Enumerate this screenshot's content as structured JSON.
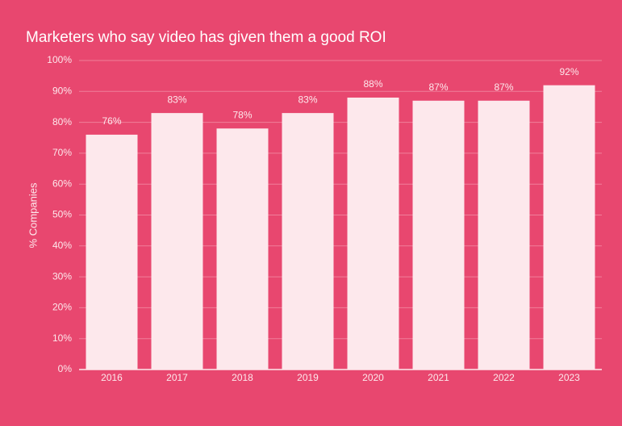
{
  "chart_data": {
    "type": "bar",
    "title": "Marketers who say video has given them a good ROI",
    "y_label": "% Companies",
    "categories": [
      "2016",
      "2017",
      "2018",
      "2019",
      "2020",
      "2021",
      "2022",
      "2023"
    ],
    "values": [
      76,
      83,
      78,
      83,
      88,
      87,
      87,
      92
    ],
    "value_labels": [
      "76%",
      "83%",
      "78%",
      "83%",
      "88%",
      "87%",
      "87%",
      "92%"
    ],
    "color": "#fde8ec",
    "ylim": [
      0,
      100
    ],
    "yticks": [
      {
        "value": 0,
        "label": "0%"
      },
      {
        "value": 10,
        "label": "10%"
      },
      {
        "value": 20,
        "label": "20%"
      },
      {
        "value": 30,
        "label": "30%"
      },
      {
        "value": 40,
        "label": "40%"
      },
      {
        "value": 50,
        "label": "50%"
      },
      {
        "value": 60,
        "label": "60%"
      },
      {
        "value": 70,
        "label": "70%"
      },
      {
        "value": 80,
        "label": "80%"
      },
      {
        "value": 90,
        "label": "90%"
      },
      {
        "value": 100,
        "label": "100%"
      }
    ],
    "grid": true
  }
}
